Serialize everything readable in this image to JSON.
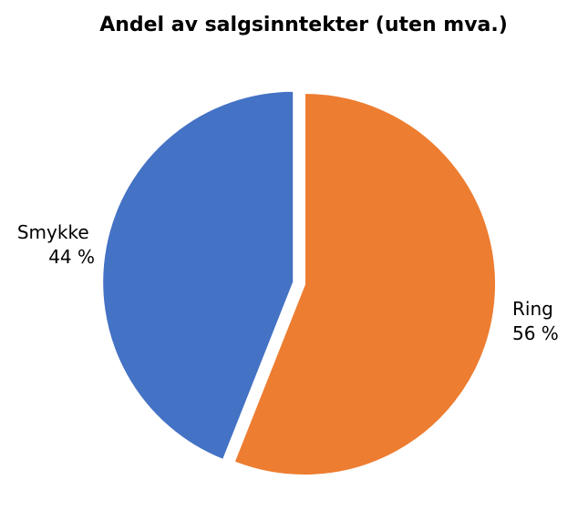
{
  "chart_data": {
    "type": "pie",
    "title": "Andel av salgsinntekter (uten mva.)",
    "slices": [
      {
        "label": "Smykke",
        "value": 44,
        "value_label": "44 %",
        "color": "#4472c4",
        "exploded": true
      },
      {
        "label": "Ring",
        "value": 56,
        "value_label": "56 %",
        "color": "#ed7d31",
        "exploded": false
      }
    ],
    "start_angle": "top (12 o'clock)",
    "direction": "counterclockwise for first slice",
    "legend": "none"
  }
}
